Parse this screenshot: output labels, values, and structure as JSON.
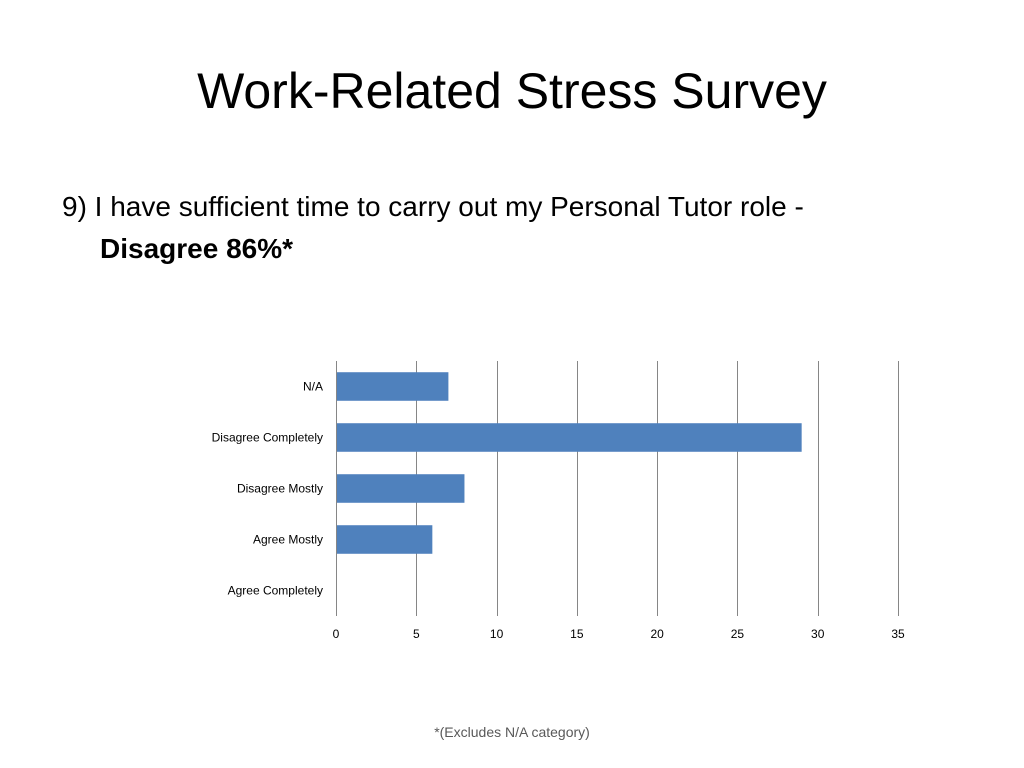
{
  "slide": {
    "title": "Work-Related Stress Survey",
    "question_line1": "9) I have sufficient time to carry out my Personal Tutor role -",
    "question_line2": "Disagree 86%*",
    "footnote": "*(Excludes N/A category)"
  },
  "chart_data": {
    "type": "bar",
    "orientation": "horizontal",
    "categories": [
      "N/A",
      "Disagree Completely",
      "Disagree Mostly",
      "Agree Mostly",
      "Agree Completely"
    ],
    "values": [
      7,
      29,
      8,
      6,
      0
    ],
    "xlim": [
      0,
      35
    ],
    "x_ticks": [
      0,
      5,
      10,
      15,
      20,
      25,
      30,
      35
    ],
    "grid": "vertical",
    "legend": "none",
    "bar_color": "#4f81bd"
  }
}
